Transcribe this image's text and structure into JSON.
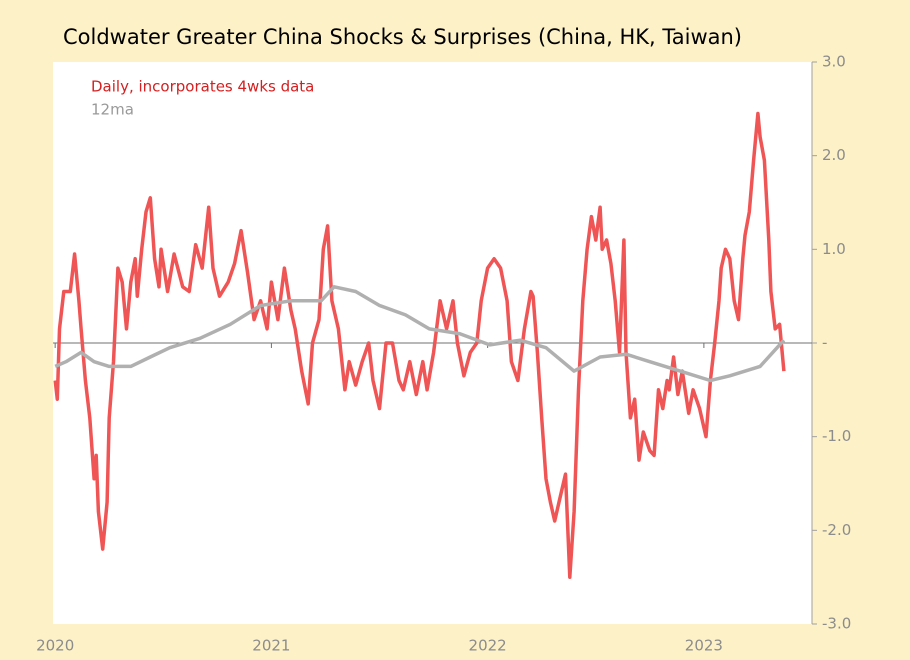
{
  "chart_data": {
    "type": "line",
    "title": "Coldwater Greater China Shocks & Surprises (China, HK, Taiwan)",
    "xlim": [
      2019.99,
      2023.5
    ],
    "xticks": [
      2020,
      2021,
      2022,
      2023
    ],
    "ylim": [
      -3,
      3
    ],
    "yticks": [
      {
        "value": 3,
        "label": "3.0"
      },
      {
        "value": 2,
        "label": "2.0"
      },
      {
        "value": 1,
        "label": "1.0"
      },
      {
        "value": 0,
        "label": "-"
      },
      {
        "value": -1,
        "label": "-1.0"
      },
      {
        "value": -2,
        "label": "-2.0"
      },
      {
        "value": -3,
        "label": "-3.0"
      }
    ],
    "series": [
      {
        "name": "Daily, incorporates 4wks data",
        "color": "#f05555",
        "x": [
          2020.0,
          2020.01,
          2020.02,
          2020.04,
          2020.07,
          2020.09,
          2020.11,
          2020.12,
          2020.14,
          2020.16,
          2020.18,
          2020.19,
          2020.2,
          2020.22,
          2020.24,
          2020.25,
          2020.27,
          2020.29,
          2020.31,
          2020.33,
          2020.35,
          2020.37,
          2020.38,
          2020.4,
          2020.42,
          2020.44,
          2020.46,
          2020.48,
          2020.49,
          2020.52,
          2020.55,
          2020.59,
          2020.62,
          2020.65,
          2020.68,
          2020.71,
          2020.73,
          2020.76,
          2020.8,
          2020.83,
          2020.86,
          2020.89,
          2020.92,
          2020.95,
          2020.98,
          2021.0,
          2021.03,
          2021.06,
          2021.09,
          2021.11,
          2021.14,
          2021.17,
          2021.19,
          2021.22,
          2021.24,
          2021.26,
          2021.28,
          2021.31,
          2021.34,
          2021.36,
          2021.39,
          2021.42,
          2021.45,
          2021.47,
          2021.5,
          2021.53,
          2021.56,
          2021.59,
          2021.61,
          2021.64,
          2021.67,
          2021.7,
          2021.72,
          2021.75,
          2021.78,
          2021.81,
          2021.84,
          2021.86,
          2021.89,
          2021.92,
          2021.95,
          2021.97,
          2022.0,
          2022.03,
          2022.06,
          2022.09,
          2022.11,
          2022.14,
          2022.17,
          2022.2,
          2022.21,
          2022.23,
          2022.25,
          2022.27,
          2022.29,
          2022.31,
          2022.33,
          2022.36,
          2022.38,
          2022.4,
          2022.42,
          2022.44,
          2022.46,
          2022.48,
          2022.5,
          2022.52,
          2022.53,
          2022.55,
          2022.57,
          2022.59,
          2022.61,
          2022.63,
          2022.64,
          2022.66,
          2022.68,
          2022.7,
          2022.72,
          2022.75,
          2022.77,
          2022.79,
          2022.81,
          2022.83,
          2022.84,
          2022.86,
          2022.88,
          2022.9,
          2022.93,
          2022.95,
          2022.98,
          2023.01,
          2023.03,
          2023.05,
          2023.07,
          2023.08,
          2023.1,
          2023.12,
          2023.14,
          2023.16,
          2023.18,
          2023.19,
          2023.21,
          2023.23,
          2023.25,
          2023.26,
          2023.28,
          2023.3,
          2023.31,
          2023.33,
          2023.35,
          2023.37
        ],
        "values": [
          -0.4,
          -0.6,
          0.15,
          0.55,
          0.55,
          0.95,
          0.45,
          0.15,
          -0.4,
          -0.8,
          -1.45,
          -1.2,
          -1.8,
          -2.2,
          -1.7,
          -0.8,
          -0.2,
          0.8,
          0.65,
          0.15,
          0.65,
          0.9,
          0.5,
          1.0,
          1.4,
          1.55,
          0.9,
          0.6,
          1.0,
          0.55,
          0.95,
          0.6,
          0.55,
          1.05,
          0.8,
          1.45,
          0.8,
          0.5,
          0.65,
          0.85,
          1.2,
          0.75,
          0.25,
          0.45,
          0.15,
          0.65,
          0.25,
          0.8,
          0.35,
          0.15,
          -0.3,
          -0.65,
          0.0,
          0.25,
          1.0,
          1.25,
          0.45,
          0.15,
          -0.5,
          -0.2,
          -0.45,
          -0.2,
          0,
          -0.4,
          -0.7,
          0.0,
          0,
          -0.4,
          -0.5,
          -0.2,
          -0.55,
          -0.2,
          -0.5,
          -0.1,
          0.45,
          0.15,
          0.45,
          0,
          -0.35,
          -0.1,
          0,
          0.45,
          0.8,
          0.9,
          0.8,
          0.45,
          -0.2,
          -0.4,
          0.15,
          0.55,
          0.5,
          -0.1,
          -0.8,
          -1.45,
          -1.7,
          -1.9,
          -1.7,
          -1.4,
          -2.5,
          -1.8,
          -0.5,
          0.45,
          1.0,
          1.35,
          1.1,
          1.45,
          1.0,
          1.1,
          0.85,
          0.45,
          -0.1,
          1.1,
          -0.1,
          -0.8,
          -0.6,
          -1.25,
          -0.95,
          -1.15,
          -1.2,
          -0.5,
          -0.7,
          -0.4,
          -0.5,
          -0.15,
          -0.55,
          -0.3,
          -0.75,
          -0.5,
          -0.7,
          -1.0,
          -0.4,
          0,
          0.45,
          0.8,
          1.0,
          0.9,
          0.45,
          0.25,
          0.9,
          1.15,
          1.4,
          1.95,
          2.45,
          2.2,
          1.95,
          1.1,
          0.55,
          0.15,
          0.2,
          -0.3
        ]
      },
      {
        "name": "12ma",
        "color": "#b0b0b0",
        "x": [
          2020.0,
          2020.05,
          2020.12,
          2020.18,
          2020.25,
          2020.35,
          2020.44,
          2020.53,
          2020.67,
          2020.81,
          2020.95,
          2021.09,
          2021.23,
          2021.29,
          2021.39,
          2021.5,
          2021.62,
          2021.73,
          2021.87,
          2022.01,
          2022.15,
          2022.27,
          2022.4,
          2022.52,
          2022.64,
          2022.75,
          2022.89,
          2023.03,
          2023.12,
          2023.26,
          2023.37
        ],
        "values": [
          -0.25,
          -0.2,
          -0.1,
          -0.2,
          -0.25,
          -0.25,
          -0.15,
          -0.05,
          0.05,
          0.2,
          0.4,
          0.45,
          0.45,
          0.6,
          0.55,
          0.4,
          0.3,
          0.15,
          0.1,
          -0.02,
          0.03,
          -0.05,
          -0.3,
          -0.15,
          -0.12,
          -0.2,
          -0.3,
          -0.4,
          -0.35,
          -0.25,
          0.03
        ]
      }
    ]
  }
}
